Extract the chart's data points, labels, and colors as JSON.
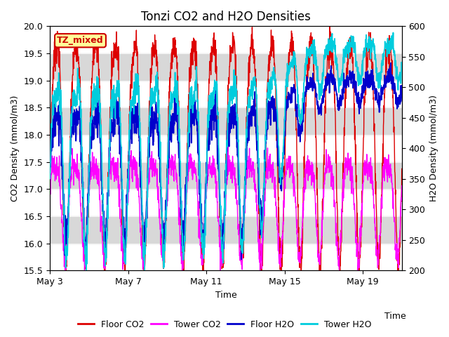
{
  "title": "Tonzi CO2 and H2O Densities",
  "xlabel": "Time",
  "ylabel_left": "CO2 Density (mmol/m3)",
  "ylabel_right": "H2O Density (mmol/m3)",
  "ylim_left": [
    15.5,
    20.0
  ],
  "ylim_right": [
    200,
    600
  ],
  "xtick_labels": [
    "May 3",
    "May 7",
    "May 11",
    "May 15",
    "May 19"
  ],
  "annotation": "TZ_mixed",
  "annotation_color": "#cc0000",
  "annotation_bg": "#ffff99",
  "floor_co2_color": "#dd0000",
  "tower_co2_color": "#ff00ff",
  "floor_h2o_color": "#0000cc",
  "tower_h2o_color": "#00ccdd",
  "legend_labels": [
    "Floor CO2",
    "Tower CO2",
    "Floor H2O",
    "Tower H2O"
  ],
  "n_points": 1800,
  "band_color": "#d8d8d8",
  "title_fontsize": 12,
  "label_fontsize": 9,
  "tick_fontsize": 9
}
